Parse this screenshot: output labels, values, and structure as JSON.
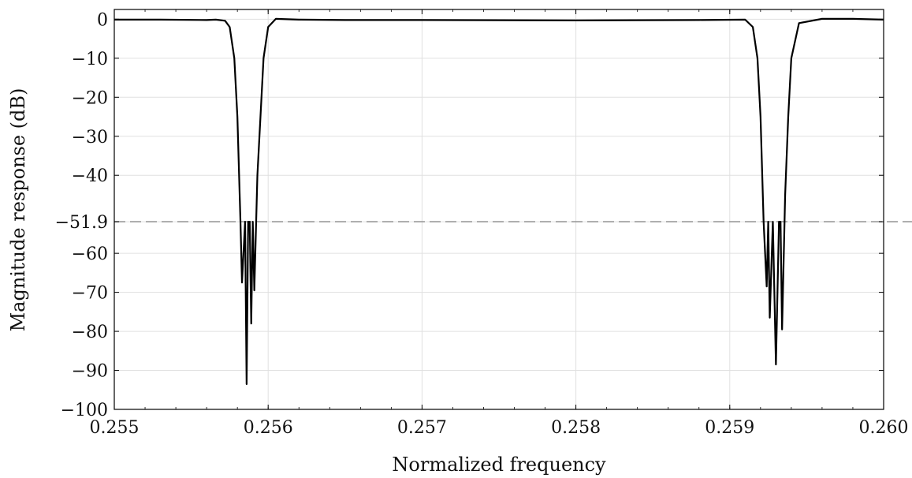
{
  "chart_data": {
    "type": "line",
    "title": "",
    "xlabel": "Normalized frequency",
    "ylabel": "Magnitude response (dB)",
    "xlim": [
      0.255,
      0.26
    ],
    "ylim": [
      -100,
      2.5
    ],
    "xticks": [
      0.255,
      0.256,
      0.257,
      0.258,
      0.259,
      0.26
    ],
    "xtick_labels": [
      "0.255",
      "0.256",
      "0.257",
      "0.258",
      "0.259",
      "0.260"
    ],
    "yticks": [
      0,
      -10,
      -20,
      -30,
      -40,
      -51.9,
      -60,
      -70,
      -80,
      -90,
      -100
    ],
    "ytick_labels": [
      "0",
      "−10",
      "−20",
      "−30",
      "−40",
      "−51.9",
      "−60",
      "−70",
      "−80",
      "−90",
      "−100"
    ],
    "grid": true,
    "reference_line": {
      "y": -51.9,
      "style": "dashed",
      "color": "#9a9a9a"
    },
    "series": [
      {
        "color": "#000000",
        "x": [
          0.255,
          0.2553,
          0.2556,
          0.25566,
          0.25572,
          0.25575,
          0.25578,
          0.2558,
          0.25582,
          0.25583,
          0.25585,
          0.25586,
          0.25587,
          0.25588,
          0.25589,
          0.2559,
          0.25591,
          0.25593,
          0.25595,
          0.25597,
          0.256,
          0.25605,
          0.2562,
          0.2565,
          0.257,
          0.258,
          0.2588,
          0.2591,
          0.25915,
          0.25918,
          0.2592,
          0.25922,
          0.25924,
          0.25925,
          0.25926,
          0.25928,
          0.2593,
          0.25932,
          0.25933,
          0.25934,
          0.25936,
          0.25938,
          0.2594,
          0.25945,
          0.2596,
          0.2598,
          0.26
        ],
        "y": [
          -0.1,
          -0.1,
          -0.2,
          -0.1,
          -0.4,
          -2,
          -10,
          -25,
          -51.9,
          -67.5,
          -51.9,
          -93.5,
          -51.9,
          -51.9,
          -78,
          -51.9,
          -69.5,
          -40,
          -25,
          -10,
          -2,
          0.1,
          -0.1,
          -0.2,
          -0.2,
          -0.3,
          -0.2,
          -0.1,
          -2,
          -10,
          -25,
          -51.9,
          -68.5,
          -51.9,
          -76.5,
          -51.9,
          -88.5,
          -51.9,
          -51.9,
          -79.5,
          -45,
          -25,
          -10,
          -1,
          0.1,
          0.1,
          -0.1
        ]
      }
    ]
  }
}
